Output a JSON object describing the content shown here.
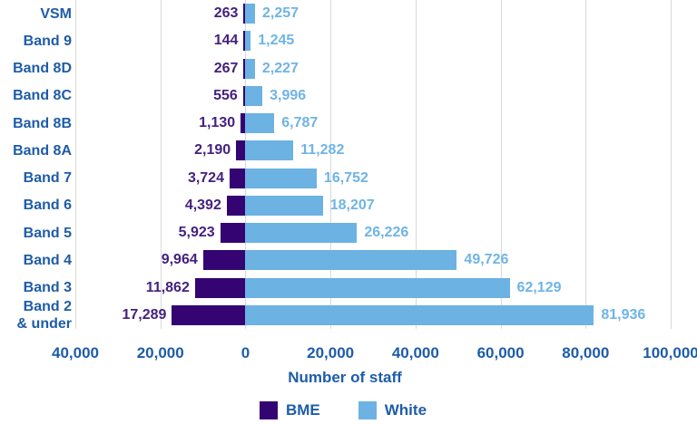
{
  "chart_data": {
    "type": "bar",
    "variant": "diverging-horizontal",
    "title": "",
    "xlabel": "Number of staff",
    "xlim": [
      -40000,
      100000
    ],
    "grid": "vertical",
    "legend_position": "bottom",
    "categories": [
      "VSM",
      "Band 9",
      "Band 8D",
      "Band 8C",
      "Band 8B",
      "Band 8A",
      "Band 7",
      "Band 6",
      "Band 5",
      "Band 4",
      "Band 3",
      "Band 2 & under"
    ],
    "category_display": [
      "VSM",
      "Band 9",
      "Band 8D",
      "Band 8C",
      "Band 8B",
      "Band 8A",
      "Band 7",
      "Band 6",
      "Band 5",
      "Band 4",
      "Band 3",
      "Band 2\n& under"
    ],
    "x_ticks": [
      {
        "value": -40000,
        "label": "40,000"
      },
      {
        "value": -20000,
        "label": "20,000"
      },
      {
        "value": 0,
        "label": "0"
      },
      {
        "value": 20000,
        "label": "20,000"
      },
      {
        "value": 40000,
        "label": "40,000"
      },
      {
        "value": 60000,
        "label": "60,000"
      },
      {
        "value": 80000,
        "label": "80,000"
      },
      {
        "value": 100000,
        "label": "100,000"
      }
    ],
    "series": [
      {
        "name": "BME",
        "direction": "left",
        "color": "#330472",
        "label_color": "#45217E",
        "values": [
          263,
          144,
          267,
          556,
          1130,
          2190,
          3724,
          4392,
          5923,
          9964,
          11862,
          17289
        ],
        "labels": [
          "263",
          "144",
          "267",
          "556",
          "1,130",
          "2,190",
          "3,724",
          "4,392",
          "5,923",
          "9,964",
          "11,862",
          "17,289"
        ]
      },
      {
        "name": "White",
        "direction": "right",
        "color": "#6CB2E2",
        "label_color": "#6FB4E5",
        "values": [
          2257,
          1245,
          2227,
          3996,
          6787,
          11282,
          16752,
          18207,
          26226,
          49726,
          62129,
          81936
        ],
        "labels": [
          "2,257",
          "1,245",
          "2,227",
          "3,996",
          "6,787",
          "11,282",
          "16,752",
          "18,207",
          "26,226",
          "49,726",
          "62,129",
          "81,936"
        ]
      }
    ],
    "legend": [
      {
        "label": "BME",
        "color": "#330472"
      },
      {
        "label": "White",
        "color": "#6CB2E2"
      }
    ]
  },
  "colors": {
    "axis_text": "#1E5CA8",
    "gridline": "#D9D9D9",
    "background": "#FFFFFF"
  }
}
